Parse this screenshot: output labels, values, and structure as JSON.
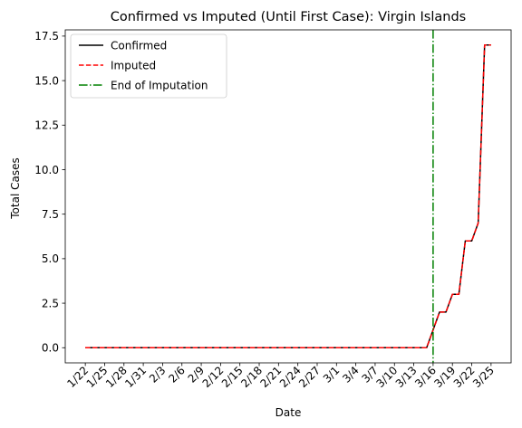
{
  "chart_data": {
    "type": "line",
    "title": "Confirmed vs Imputed (Until First Case): Virgin Islands",
    "xlabel": "Date",
    "ylabel": "Total Cases",
    "x": [
      "1/22",
      "1/23",
      "1/24",
      "1/25",
      "1/26",
      "1/27",
      "1/28",
      "1/29",
      "1/30",
      "1/31",
      "2/1",
      "2/2",
      "2/3",
      "2/4",
      "2/5",
      "2/6",
      "2/7",
      "2/8",
      "2/9",
      "2/10",
      "2/11",
      "2/12",
      "2/13",
      "2/14",
      "2/15",
      "2/16",
      "2/17",
      "2/18",
      "2/19",
      "2/20",
      "2/21",
      "2/22",
      "2/23",
      "2/24",
      "2/25",
      "2/26",
      "2/27",
      "2/28",
      "2/29",
      "3/1",
      "3/2",
      "3/3",
      "3/4",
      "3/5",
      "3/6",
      "3/7",
      "3/8",
      "3/9",
      "3/10",
      "3/11",
      "3/12",
      "3/13",
      "3/14",
      "3/15",
      "3/16",
      "3/17",
      "3/18",
      "3/19",
      "3/20",
      "3/21",
      "3/22",
      "3/23",
      "3/24",
      "3/25"
    ],
    "xticks": [
      "1/22",
      "1/25",
      "1/28",
      "1/31",
      "2/3",
      "2/6",
      "2/9",
      "2/12",
      "2/15",
      "2/18",
      "2/21",
      "2/24",
      "2/27",
      "3/1",
      "3/4",
      "3/7",
      "3/10",
      "3/13",
      "3/16",
      "3/19",
      "3/22",
      "3/25"
    ],
    "yticks": [
      "0.0",
      "2.5",
      "5.0",
      "7.5",
      "10.0",
      "12.5",
      "15.0",
      "17.5"
    ],
    "ylim": [
      -0.85,
      17.85
    ],
    "series": [
      {
        "name": "Confirmed",
        "color": "#000000",
        "style": "solid",
        "values": [
          0,
          0,
          0,
          0,
          0,
          0,
          0,
          0,
          0,
          0,
          0,
          0,
          0,
          0,
          0,
          0,
          0,
          0,
          0,
          0,
          0,
          0,
          0,
          0,
          0,
          0,
          0,
          0,
          0,
          0,
          0,
          0,
          0,
          0,
          0,
          0,
          0,
          0,
          0,
          0,
          0,
          0,
          0,
          0,
          0,
          0,
          0,
          0,
          0,
          0,
          0,
          0,
          0,
          0,
          1,
          2,
          2,
          3,
          3,
          6,
          6,
          7,
          17,
          17
        ]
      },
      {
        "name": "Imputed",
        "color": "#ff0000",
        "style": "dashed",
        "values": [
          0,
          0,
          0,
          0,
          0,
          0,
          0,
          0,
          0,
          0,
          0,
          0,
          0,
          0,
          0,
          0,
          0,
          0,
          0,
          0,
          0,
          0,
          0,
          0,
          0,
          0,
          0,
          0,
          0,
          0,
          0,
          0,
          0,
          0,
          0,
          0,
          0,
          0,
          0,
          0,
          0,
          0,
          0,
          0,
          0,
          0,
          0,
          0,
          0,
          0,
          0,
          0,
          0,
          0,
          1,
          2,
          2,
          3,
          3,
          6,
          6,
          7,
          17,
          17
        ]
      }
    ],
    "vline": {
      "name": "End of Imputation",
      "x": "3/16",
      "color": "#008000",
      "style": "dashdot"
    },
    "legend": {
      "position": "top-left",
      "entries": [
        {
          "label": "Confirmed",
          "color": "#000000",
          "style": "solid"
        },
        {
          "label": "Imputed",
          "color": "#ff0000",
          "style": "dashed"
        },
        {
          "label": "End of Imputation",
          "color": "#008000",
          "style": "dashdot"
        }
      ]
    }
  }
}
